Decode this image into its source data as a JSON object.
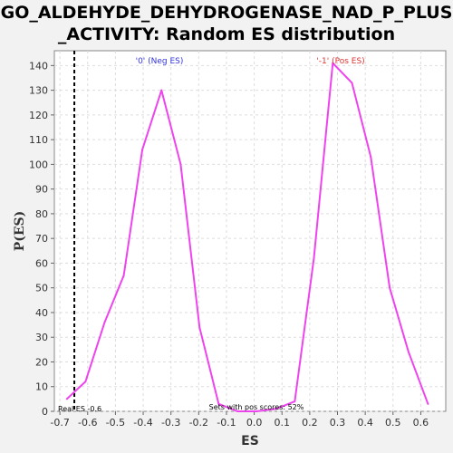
{
  "title": {
    "line1": "GO_ALDEHYDE_DEHYDROGENASE_NAD_P_PLUS",
    "line2": "_ACTIVITY: Random ES distribution"
  },
  "chart_data": {
    "type": "line",
    "xlabel": "ES",
    "ylabel": "P(ES)",
    "xlim": [
      -0.72,
      0.69
    ],
    "ylim": [
      0,
      146
    ],
    "xticks": [
      -0.7,
      -0.6,
      -0.5,
      -0.4,
      -0.3,
      -0.2,
      -0.1,
      0.0,
      0.1,
      0.2,
      0.3,
      0.4,
      0.5,
      0.6
    ],
    "yticks": [
      0,
      10,
      20,
      30,
      40,
      50,
      60,
      70,
      80,
      90,
      100,
      110,
      120,
      130,
      140
    ],
    "grid": true,
    "series": [
      {
        "color": "#ee44ee",
        "x": [
          -0.675,
          -0.608,
          -0.539,
          -0.47,
          -0.403,
          -0.334,
          -0.265,
          -0.197,
          -0.128,
          -0.06,
          0.008,
          0.078,
          0.146,
          0.215,
          0.283,
          0.352,
          0.42,
          0.488,
          0.556,
          0.626
        ],
        "y": [
          5,
          12,
          36,
          55,
          106,
          130,
          100,
          34,
          3,
          0,
          0,
          1,
          4,
          62,
          141,
          133,
          103,
          50,
          24,
          3
        ]
      }
    ],
    "annotations": {
      "neg_label": "'0' (Neg ES)",
      "pos_label": "'-1' (Pos ES)",
      "real_es": "Real ES -0.6",
      "real_es_value": -0.648,
      "pos_scores": "Sets with pos scores: 52%"
    },
    "colors": {
      "line": "#ee44ee",
      "neg_label": "#3333dd",
      "pos_label": "#dd3333",
      "real_es_line": "#000000"
    }
  }
}
